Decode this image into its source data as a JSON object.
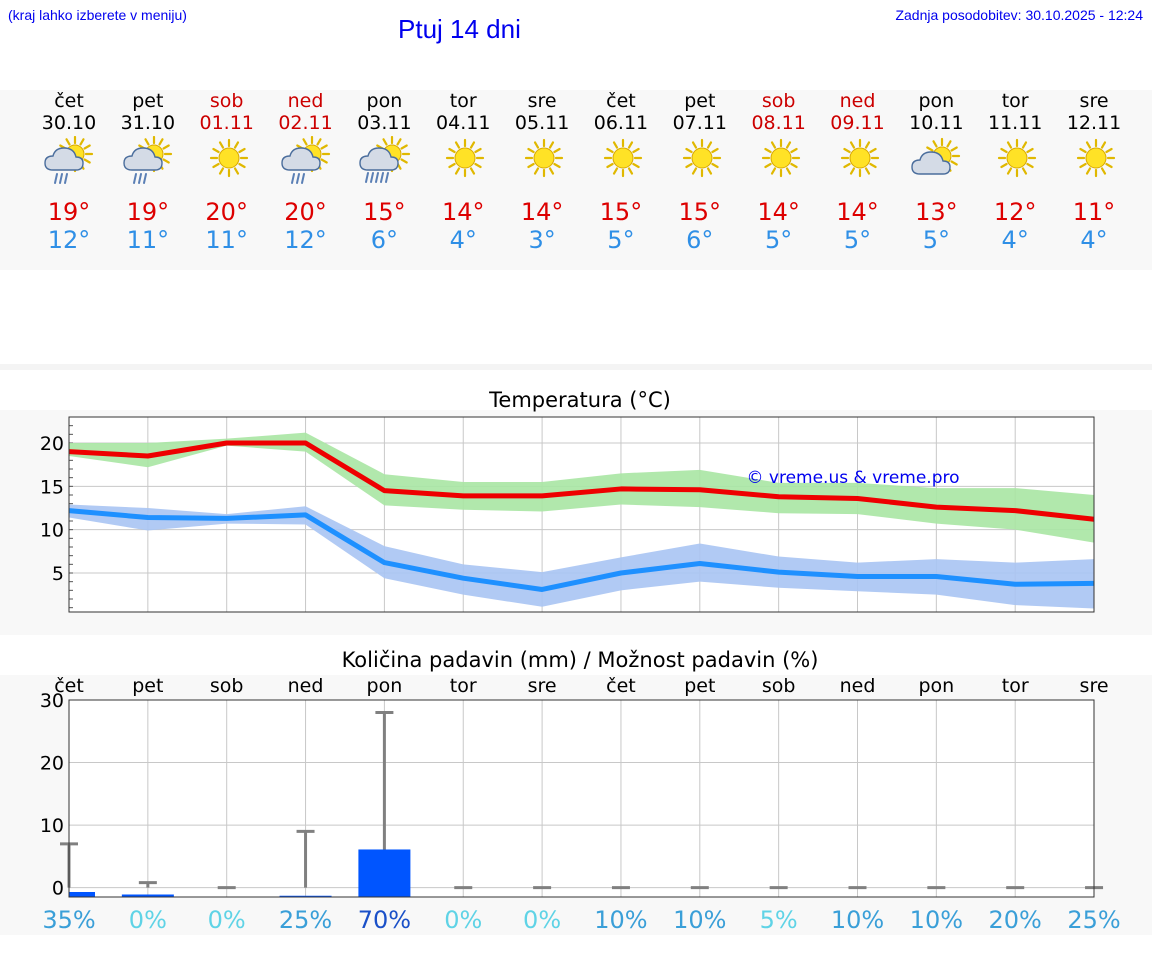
{
  "header": {
    "menu_hint": "(kraj lahko izberete v meniju)",
    "title": "Ptuj 14 dni",
    "updated": "Zadnja posodobitev: 30.10.2025 - 12:24"
  },
  "colors": {
    "max_temp": "#ee0000",
    "min_temp": "#1e90ff",
    "max_band": "#a8e6a3",
    "min_band": "#a9c4f3",
    "precip_bar": "#0055ff",
    "link": "#0000ee"
  },
  "forecast": {
    "days": [
      {
        "name": "čet",
        "date": "30.10",
        "weekend": false,
        "icon": "sun-cloud-rain-icon",
        "tmax": "19°",
        "tmin": "12°"
      },
      {
        "name": "pet",
        "date": "31.10",
        "weekend": false,
        "icon": "sun-cloud-rain-icon",
        "tmax": "19°",
        "tmin": "11°"
      },
      {
        "name": "sob",
        "date": "01.11",
        "weekend": true,
        "icon": "sun-icon",
        "tmax": "20°",
        "tmin": "11°"
      },
      {
        "name": "ned",
        "date": "02.11",
        "weekend": true,
        "icon": "sun-cloud-rain-icon",
        "tmax": "20°",
        "tmin": "12°"
      },
      {
        "name": "pon",
        "date": "03.11",
        "weekend": false,
        "icon": "sun-cloud-heavy-rain-icon",
        "tmax": "15°",
        "tmin": "6°"
      },
      {
        "name": "tor",
        "date": "04.11",
        "weekend": false,
        "icon": "sun-icon",
        "tmax": "14°",
        "tmin": "4°"
      },
      {
        "name": "sre",
        "date": "05.11",
        "weekend": false,
        "icon": "sun-icon",
        "tmax": "14°",
        "tmin": "3°"
      },
      {
        "name": "čet",
        "date": "06.11",
        "weekend": false,
        "icon": "sun-icon",
        "tmax": "15°",
        "tmin": "5°"
      },
      {
        "name": "pet",
        "date": "07.11",
        "weekend": false,
        "icon": "sun-icon",
        "tmax": "15°",
        "tmin": "6°"
      },
      {
        "name": "sob",
        "date": "08.11",
        "weekend": true,
        "icon": "sun-icon",
        "tmax": "14°",
        "tmin": "5°"
      },
      {
        "name": "ned",
        "date": "09.11",
        "weekend": true,
        "icon": "sun-icon",
        "tmax": "14°",
        "tmin": "5°"
      },
      {
        "name": "pon",
        "date": "10.11",
        "weekend": false,
        "icon": "sun-cloud-icon",
        "tmax": "13°",
        "tmin": "5°"
      },
      {
        "name": "tor",
        "date": "11.11",
        "weekend": false,
        "icon": "sun-icon",
        "tmax": "12°",
        "tmin": "4°"
      },
      {
        "name": "sre",
        "date": "12.11",
        "weekend": false,
        "icon": "sun-icon",
        "tmax": "11°",
        "tmin": "4°"
      }
    ]
  },
  "chart_data": [
    {
      "type": "line",
      "title": "Temperatura (°C)",
      "xlabel": "",
      "ylabel": "",
      "watermark": "© vreme.us & vreme.pro",
      "categories": [
        "čet",
        "pet",
        "sob",
        "ned",
        "pon",
        "tor",
        "sre",
        "čet",
        "pet",
        "sob",
        "ned",
        "pon",
        "tor",
        "sre"
      ],
      "ylim": [
        0.5,
        23
      ],
      "yticks": [
        5,
        10,
        15,
        20
      ],
      "grid": true,
      "series": [
        {
          "name": "max",
          "values": [
            19,
            18.5,
            20,
            20,
            14.5,
            13.9,
            13.9,
            14.7,
            14.6,
            13.8,
            13.6,
            12.6,
            12.2,
            11.2
          ],
          "band_low": [
            18.5,
            17.2,
            19.7,
            19,
            12.8,
            12.3,
            12.1,
            12.9,
            12.6,
            11.9,
            11.8,
            10.7,
            10,
            8.5
          ],
          "band_high": [
            20,
            20,
            20.5,
            21.2,
            16.4,
            15.5,
            15.5,
            16.5,
            16.9,
            15.4,
            15.4,
            14.8,
            14.8,
            14
          ]
        },
        {
          "name": "min",
          "values": [
            12.2,
            11.4,
            11.3,
            11.7,
            6.2,
            4.4,
            3.1,
            5,
            6.1,
            5.1,
            4.6,
            4.6,
            3.7,
            3.8
          ],
          "band_low": [
            11.4,
            9.9,
            10.7,
            10.6,
            4.4,
            2.5,
            1.1,
            3,
            4,
            3.3,
            2.9,
            2.5,
            1.3,
            0.9
          ],
          "band_high": [
            12.9,
            12.5,
            11.8,
            12.7,
            8.1,
            6,
            5.1,
            6.8,
            8.4,
            6.9,
            6.2,
            6.6,
            6.2,
            6.6
          ]
        }
      ]
    },
    {
      "type": "bar",
      "title": "Količina padavin (mm) / Možnost padavin (%)",
      "xlabel": "",
      "ylabel": "",
      "categories": [
        "čet",
        "pet",
        "sob",
        "ned",
        "pon",
        "tor",
        "sre",
        "čet",
        "pet",
        "sob",
        "ned",
        "pon",
        "tor",
        "sre"
      ],
      "ylim": [
        -1.5,
        30
      ],
      "yticks": [
        0,
        10,
        20,
        30
      ],
      "grid": true,
      "series": [
        {
          "name": "precip_mm",
          "values": [
            0.8,
            0.4,
            0,
            0.2,
            7.6,
            0,
            0,
            0,
            0,
            0,
            0,
            0,
            0,
            0
          ]
        },
        {
          "name": "precip_max_mm",
          "values": [
            7,
            0.8,
            0,
            9,
            28,
            0,
            0,
            0,
            0,
            0,
            0,
            0,
            0,
            0
          ]
        }
      ],
      "probability": [
        "35%",
        "0%",
        "0%",
        "25%",
        "70%",
        "0%",
        "0%",
        "10%",
        "10%",
        "5%",
        "10%",
        "10%",
        "20%",
        "25%"
      ],
      "probability_values": [
        35,
        0,
        0,
        25,
        70,
        0,
        0,
        10,
        10,
        5,
        10,
        10,
        20,
        25
      ]
    }
  ]
}
